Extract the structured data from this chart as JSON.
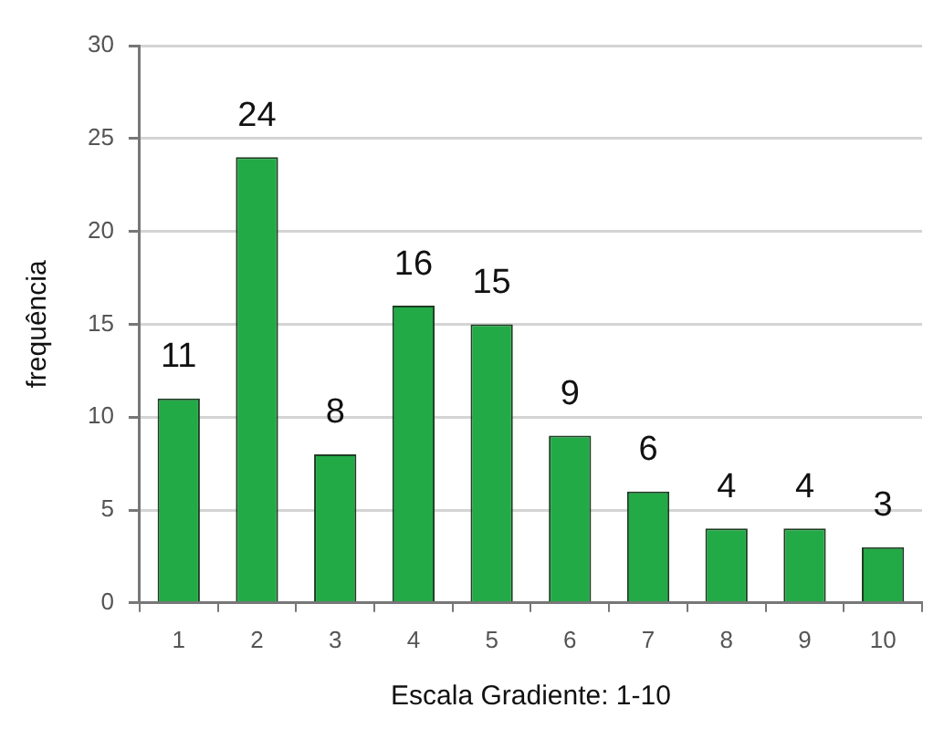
{
  "chart_data": {
    "type": "bar",
    "xlabel": "Escala Gradiente: 1-10",
    "ylabel": "frequência",
    "categories": [
      "1",
      "2",
      "3",
      "4",
      "5",
      "6",
      "7",
      "8",
      "9",
      "10"
    ],
    "values": [
      11,
      24,
      8,
      16,
      15,
      9,
      6,
      4,
      4,
      3
    ],
    "color": "#22aa47",
    "ylim": [
      0,
      30
    ],
    "yticks": [
      0,
      5,
      10,
      15,
      20,
      25,
      30
    ],
    "grid": "y",
    "legend": false,
    "data_labels": true
  }
}
